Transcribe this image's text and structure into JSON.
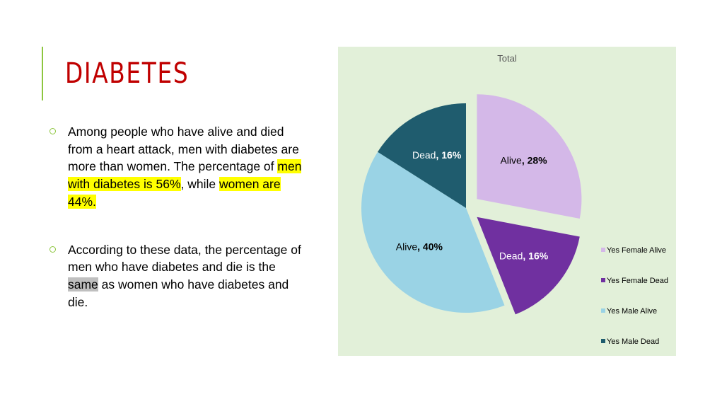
{
  "slide": {
    "title": "DIABETES",
    "bullets": [
      {
        "parts": [
          {
            "text": "Among people who have alive and died from a heart attack, men with diabetes are more than women. The percentage of ",
            "hl": ""
          },
          {
            "text": "men with diabetes is 56%",
            "hl": "yellow"
          },
          {
            "text": ", while ",
            "hl": ""
          },
          {
            "text": "women are 44%.",
            "hl": "yellow"
          }
        ]
      },
      {
        "parts": [
          {
            "text": "According to these data, the percentage of men who have diabetes and die is the ",
            "hl": ""
          },
          {
            "text": "same",
            "hl": "gray"
          },
          {
            "text": " as women who have diabetes and die.",
            "hl": ""
          }
        ]
      }
    ]
  },
  "colors": {
    "title": "#c00000",
    "accent": "#8dc63f",
    "chart_background": "#e2f0d9",
    "highlight_yellow": "#ffff00",
    "highlight_gray": "#bfbfbf"
  },
  "chart_data": {
    "type": "pie",
    "title": "Total",
    "exploded": true,
    "legend_position": "right",
    "slices": [
      {
        "legend": "Yes Female Alive",
        "label": "Alive",
        "value": 28,
        "color": "#d4b8e8",
        "label_color": "#000000"
      },
      {
        "legend": "Yes Female Dead",
        "label": "Dead",
        "value": 16,
        "color": "#7030a0",
        "label_color": "#ffffff"
      },
      {
        "legend": "Yes Male Alive",
        "label": "Alive",
        "value": 40,
        "color": "#9ad3e5",
        "label_color": "#000000"
      },
      {
        "legend": "Yes Male Dead",
        "label": "Dead",
        "value": 16,
        "color": "#1f5c6e",
        "label_color": "#ffffff"
      }
    ]
  }
}
